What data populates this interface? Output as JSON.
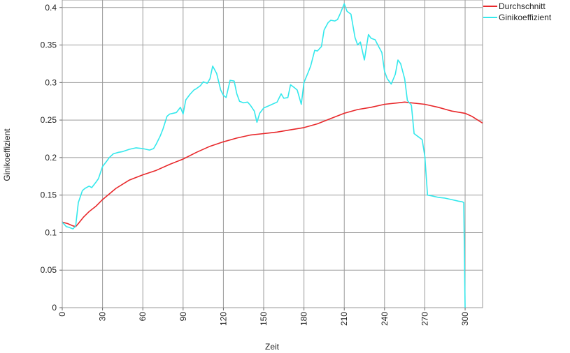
{
  "chart_data": {
    "type": "line",
    "xlabel": "Zeit",
    "ylabel": "Ginikoeffizient",
    "xlim": [
      0,
      313
    ],
    "ylim": [
      0,
      0.41
    ],
    "xticks": [
      0,
      30,
      60,
      90,
      120,
      150,
      180,
      210,
      240,
      270,
      300
    ],
    "yticks": [
      0,
      0.05,
      0.1,
      0.15,
      0.2,
      0.25,
      0.3,
      0.35,
      0.4
    ],
    "ytick_labels": [
      "0",
      "0.05",
      "0.1",
      "0.15",
      "0.2",
      "0.25",
      "0.3",
      "0.35",
      "0.4"
    ],
    "grid": true,
    "legend": "top-right",
    "series": [
      {
        "name": "Durchschnitt",
        "color": "#e8282b",
        "x": [
          0,
          4,
          8,
          10,
          12,
          16,
          20,
          25,
          30,
          40,
          50,
          60,
          70,
          80,
          90,
          100,
          110,
          120,
          130,
          140,
          150,
          160,
          170,
          180,
          190,
          200,
          210,
          220,
          230,
          240,
          250,
          255,
          260,
          270,
          280,
          290,
          300,
          305,
          313
        ],
        "y": [
          0.114,
          0.112,
          0.109,
          0.108,
          0.112,
          0.121,
          0.128,
          0.135,
          0.144,
          0.159,
          0.17,
          0.177,
          0.183,
          0.191,
          0.198,
          0.207,
          0.215,
          0.221,
          0.226,
          0.23,
          0.232,
          0.234,
          0.237,
          0.24,
          0.245,
          0.252,
          0.259,
          0.264,
          0.267,
          0.271,
          0.273,
          0.274,
          0.273,
          0.271,
          0.267,
          0.262,
          0.259,
          0.255,
          0.246
        ]
      },
      {
        "name": "Ginikoeffizient",
        "color": "#34e8ec",
        "x": [
          0,
          3,
          5,
          8,
          10,
          12,
          15,
          17,
          20,
          22,
          25,
          27,
          30,
          33,
          35,
          38,
          42,
          45,
          50,
          55,
          60,
          65,
          68,
          70,
          73,
          75,
          78,
          80,
          85,
          88,
          90,
          92,
          95,
          98,
          100,
          103,
          105,
          108,
          110,
          112,
          115,
          118,
          120,
          122,
          125,
          128,
          130,
          132,
          135,
          138,
          140,
          143,
          145,
          147,
          150,
          155,
          160,
          163,
          165,
          168,
          170,
          173,
          175,
          178,
          180,
          183,
          185,
          188,
          190,
          193,
          195,
          198,
          200,
          203,
          205,
          207,
          210,
          212,
          215,
          218,
          220,
          222,
          225,
          228,
          230,
          233,
          235,
          238,
          240,
          242,
          245,
          248,
          250,
          252,
          255,
          257,
          260,
          262,
          265,
          268,
          270,
          272,
          275,
          280,
          285,
          290,
          295,
          298,
          299,
          300
        ],
        "y": [
          0.114,
          0.108,
          0.107,
          0.105,
          0.109,
          0.14,
          0.156,
          0.159,
          0.162,
          0.16,
          0.167,
          0.172,
          0.188,
          0.195,
          0.2,
          0.205,
          0.207,
          0.208,
          0.211,
          0.213,
          0.212,
          0.21,
          0.212,
          0.218,
          0.229,
          0.238,
          0.255,
          0.258,
          0.26,
          0.267,
          0.258,
          0.277,
          0.284,
          0.29,
          0.292,
          0.296,
          0.301,
          0.299,
          0.305,
          0.322,
          0.312,
          0.29,
          0.283,
          0.28,
          0.303,
          0.302,
          0.285,
          0.275,
          0.273,
          0.274,
          0.27,
          0.262,
          0.247,
          0.259,
          0.266,
          0.27,
          0.274,
          0.285,
          0.279,
          0.28,
          0.297,
          0.293,
          0.29,
          0.271,
          0.3,
          0.313,
          0.322,
          0.343,
          0.342,
          0.348,
          0.37,
          0.38,
          0.383,
          0.382,
          0.384,
          0.392,
          0.405,
          0.395,
          0.391,
          0.36,
          0.35,
          0.354,
          0.33,
          0.364,
          0.359,
          0.357,
          0.35,
          0.34,
          0.315,
          0.305,
          0.298,
          0.311,
          0.33,
          0.325,
          0.305,
          0.276,
          0.27,
          0.232,
          0.228,
          0.224,
          0.202,
          0.15,
          0.149,
          0.147,
          0.146,
          0.144,
          0.142,
          0.141,
          0.14,
          0.0
        ]
      }
    ]
  }
}
